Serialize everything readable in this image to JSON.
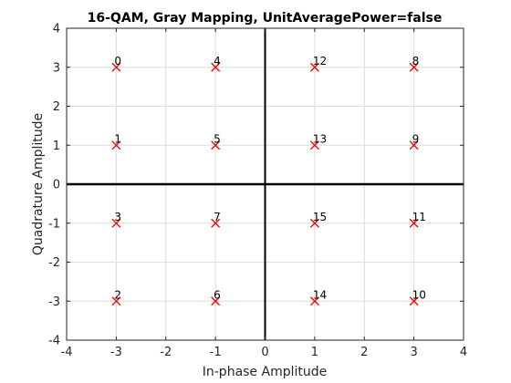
{
  "chart_data": {
    "type": "scatter",
    "title": "16-QAM, Gray Mapping, UnitAveragePower=false",
    "xlabel": "In-phase Amplitude",
    "ylabel": "Quadrature Amplitude",
    "xlim": [
      -4,
      4
    ],
    "ylim": [
      -4,
      4
    ],
    "xticks": [
      "-4",
      "-3",
      "-2",
      "-1",
      "0",
      "1",
      "2",
      "3",
      "4"
    ],
    "yticks": [
      "-4",
      "-3",
      "-2",
      "-1",
      "0",
      "1",
      "2",
      "3",
      "4"
    ],
    "grid": true,
    "marker": "x",
    "colors": {
      "marker": "#ff0000",
      "axis_lines": "#000000",
      "grid": "#dcdcdc"
    },
    "points": [
      {
        "x": -3,
        "y": 3,
        "label": "0"
      },
      {
        "x": -1,
        "y": 3,
        "label": "4"
      },
      {
        "x": 1,
        "y": 3,
        "label": "12"
      },
      {
        "x": 3,
        "y": 3,
        "label": "8"
      },
      {
        "x": -3,
        "y": 1,
        "label": "1"
      },
      {
        "x": -1,
        "y": 1,
        "label": "5"
      },
      {
        "x": 1,
        "y": 1,
        "label": "13"
      },
      {
        "x": 3,
        "y": 1,
        "label": "9"
      },
      {
        "x": -3,
        "y": -1,
        "label": "3"
      },
      {
        "x": -1,
        "y": -1,
        "label": "7"
      },
      {
        "x": 1,
        "y": -1,
        "label": "15"
      },
      {
        "x": 3,
        "y": -1,
        "label": "11"
      },
      {
        "x": -3,
        "y": -3,
        "label": "2"
      },
      {
        "x": -1,
        "y": -3,
        "label": "6"
      },
      {
        "x": 1,
        "y": -3,
        "label": "14"
      },
      {
        "x": 3,
        "y": -3,
        "label": "10"
      }
    ]
  }
}
